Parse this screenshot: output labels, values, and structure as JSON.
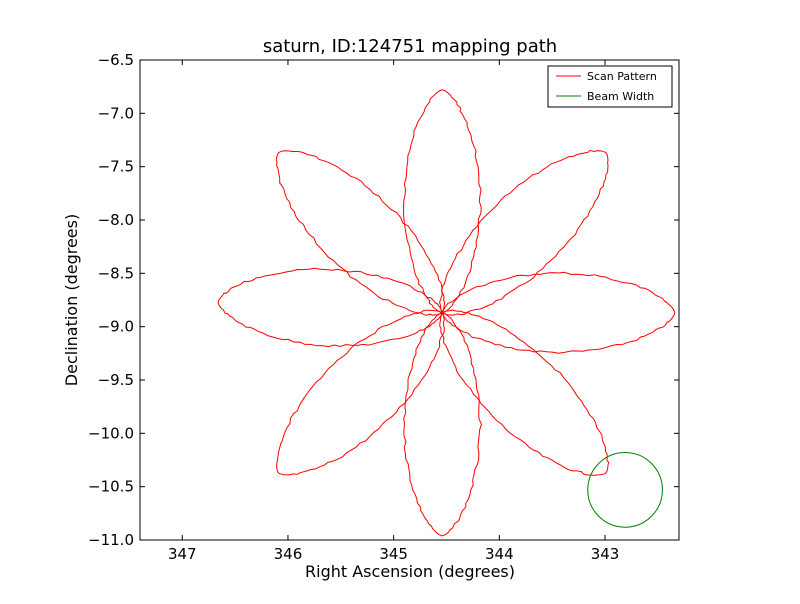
{
  "chart_data": {
    "type": "line",
    "title": "saturn, ID:124751 mapping path",
    "xlabel": "Right Ascension (degrees)",
    "ylabel": "Declination (degrees)",
    "xlim": [
      347.4,
      342.3
    ],
    "ylim": [
      -11.0,
      -6.5
    ],
    "x_ticks": [
      347,
      346,
      345,
      344,
      343
    ],
    "x_tick_labels": [
      "347",
      "346",
      "345",
      "344",
      "343"
    ],
    "y_ticks": [
      -11.0,
      -10.5,
      -10.0,
      -9.5,
      -9.0,
      -8.5,
      -8.0,
      -7.5,
      -7.0,
      -6.5
    ],
    "y_tick_labels": [
      "−11.0",
      "−10.5",
      "−10.0",
      "−9.5",
      "−9.0",
      "−8.5",
      "−8.0",
      "−7.5",
      "−7.0",
      "−6.5"
    ],
    "grid": false,
    "legend_position": "top-right",
    "center": [
      344.54,
      -8.87
    ],
    "series": [
      {
        "name": "Scan Pattern",
        "color": "#ff0000",
        "kind": "rose",
        "petals": 8,
        "tip_points": [
          [
            344.54,
            -6.78
          ],
          [
            342.99,
            -7.37
          ],
          [
            342.34,
            -8.87
          ],
          [
            342.99,
            -10.37
          ],
          [
            344.54,
            -10.96
          ],
          [
            346.09,
            -10.37
          ],
          [
            346.66,
            -8.77
          ],
          [
            346.09,
            -7.37
          ]
        ]
      },
      {
        "name": "Beam Width",
        "color": "#008000",
        "kind": "circle",
        "center": [
          342.81,
          -10.53
        ],
        "radius_dec": 0.35
      }
    ]
  }
}
